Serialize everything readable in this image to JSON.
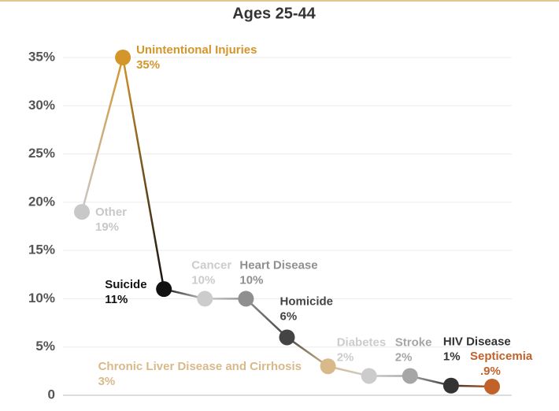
{
  "chart_data": {
    "type": "line",
    "title": "Ages 25-44",
    "categories": [
      "Other",
      "Unintentional Injuries",
      "Suicide",
      "Cancer",
      "Heart Disease",
      "Homicide",
      "Chronic Liver Disease and Cirrhosis",
      "Diabetes",
      "Stroke",
      "HIV Disease",
      "Septicemia"
    ],
    "values": [
      19,
      35,
      11,
      10,
      10,
      6,
      3,
      2,
      2,
      1,
      0.9
    ],
    "value_labels": [
      "19%",
      "35%",
      "11%",
      "10%",
      "10%",
      "6%",
      "3%",
      "2%",
      "2%",
      "1%",
      ".9%"
    ],
    "colors": [
      "#c8c8c8",
      "#d4952b",
      "#111111",
      "#cccccc",
      "#8f8f8f",
      "#444444",
      "#d9b98a",
      "#cccccc",
      "#a6a6a6",
      "#333333",
      "#c0622a"
    ],
    "ylim": [
      0,
      35
    ],
    "yticks": [
      0,
      {
        "value": 5,
        "label": "5%"
      },
      {
        "value": 10,
        "label": "10%"
      },
      {
        "value": 15,
        "label": "15%"
      },
      {
        "value": 20,
        "label": "20%"
      },
      {
        "value": 25,
        "label": "25%"
      },
      {
        "value": 30,
        "label": "30%"
      },
      {
        "value": 35,
        "label": "35%"
      }
    ],
    "grid": true
  }
}
